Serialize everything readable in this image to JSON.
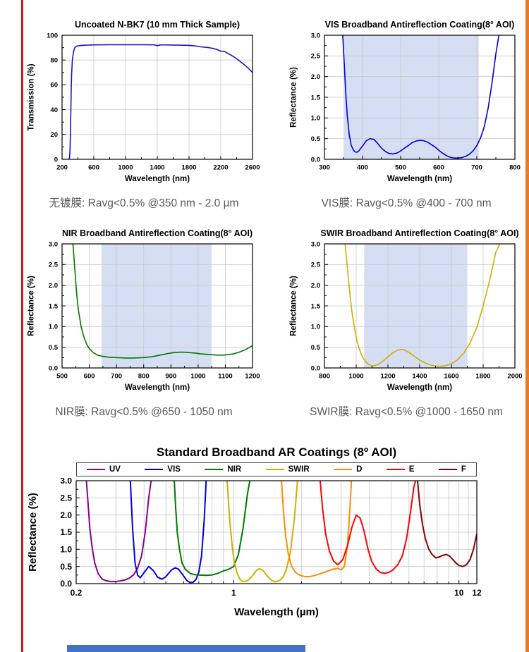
{
  "page": {
    "left_border_color": "#c01a20",
    "right_border_color": "#e87c24",
    "bottom_bar_color": "#4472c4"
  },
  "style": {
    "band_color": "#d5def2",
    "grid_color": "#c9c9c9",
    "caption_color": "#595959"
  },
  "chart_data": [
    {
      "id": "uncoated-bk7",
      "type": "line",
      "title": "Uncoated N-BK7 (10 mm Thick Sample)",
      "xlabel": "Wavelength (nm)",
      "ylabel": "Transmission (%)",
      "caption": "无镀膜: Ravg<0.5% @350 nm - 2.0 µm",
      "xscale": "linear",
      "xlim": [
        200,
        2600
      ],
      "ylim": [
        0,
        100
      ],
      "xticks": [
        200,
        600,
        1000,
        1400,
        1800,
        2200,
        2600
      ],
      "yticks": [
        0,
        20,
        40,
        60,
        80,
        100
      ],
      "ydecimals": 0,
      "series": [
        {
          "name": "N-BK7 transmission",
          "color": "#1414cc",
          "x": [
            288,
            295,
            300,
            305,
            310,
            315,
            320,
            330,
            340,
            350,
            360,
            380,
            400,
            450,
            500,
            600,
            700,
            800,
            900,
            1000,
            1100,
            1200,
            1300,
            1360,
            1400,
            1440,
            1500,
            1600,
            1700,
            1800,
            1850,
            1900,
            1950,
            2000,
            2050,
            2100,
            2150,
            2200,
            2250,
            2300,
            2350,
            2400,
            2450,
            2500,
            2550,
            2600
          ],
          "y": [
            0,
            2,
            8,
            20,
            38,
            55,
            68,
            80,
            85,
            88,
            90,
            91,
            91.5,
            91.8,
            92,
            92.2,
            92.3,
            92.4,
            92.4,
            92.4,
            92.4,
            92.4,
            92.3,
            92.3,
            91.6,
            92.2,
            92.2,
            92.1,
            92.0,
            91.8,
            91.6,
            91.2,
            90.6,
            90.4,
            90.0,
            89.4,
            88.6,
            87.2,
            86.8,
            85.0,
            83.2,
            81.0,
            78.6,
            76.0,
            73.2,
            70.0
          ]
        }
      ]
    },
    {
      "id": "vis-bbar",
      "type": "line",
      "title": "VIS Broadband Antireflection Coating(8° AOI)",
      "xlabel": "Wavelength (nm)",
      "ylabel": "Reflectance (%)",
      "caption": "VIS膜: Ravg<0.5% @400 - 700 nm",
      "xscale": "linear",
      "xlim": [
        300,
        800
      ],
      "ylim": [
        0,
        3.0
      ],
      "xticks": [
        300,
        400,
        500,
        600,
        700,
        800
      ],
      "yticks": [
        0,
        0.5,
        1.0,
        1.5,
        2.0,
        2.5,
        3.0
      ],
      "ydecimals": 1,
      "band": [
        350,
        705
      ],
      "series": [
        {
          "name": "VIS BBAR reflectance",
          "color": "#0000dd",
          "x": [
            348,
            352,
            356,
            360,
            365,
            370,
            375,
            380,
            385,
            390,
            400,
            410,
            420,
            430,
            440,
            450,
            460,
            470,
            480,
            490,
            500,
            510,
            520,
            530,
            540,
            550,
            560,
            570,
            580,
            590,
            600,
            610,
            620,
            630,
            640,
            650,
            660,
            670,
            680,
            690,
            700,
            710,
            720,
            730,
            740,
            750,
            758
          ],
          "y": [
            3.0,
            2.3,
            1.6,
            1.05,
            0.6,
            0.35,
            0.24,
            0.18,
            0.17,
            0.2,
            0.32,
            0.45,
            0.5,
            0.48,
            0.38,
            0.27,
            0.19,
            0.14,
            0.13,
            0.15,
            0.2,
            0.27,
            0.33,
            0.4,
            0.44,
            0.46,
            0.45,
            0.42,
            0.36,
            0.3,
            0.22,
            0.15,
            0.09,
            0.05,
            0.03,
            0.03,
            0.04,
            0.07,
            0.12,
            0.2,
            0.33,
            0.52,
            0.8,
            1.25,
            1.85,
            2.55,
            3.0
          ]
        }
      ]
    },
    {
      "id": "nir-bbar",
      "type": "line",
      "title": "NIR Broadband Antireflection Coating(8° AOI)",
      "xlabel": "Wavelength (nm)",
      "ylabel": "Reflectance (%)",
      "caption": "NIR膜: Ravg<0.5% @650 - 1050 nm",
      "xscale": "linear",
      "xlim": [
        500,
        1200
      ],
      "ylim": [
        0,
        3.0
      ],
      "xticks": [
        500,
        600,
        700,
        800,
        900,
        1000,
        1100,
        1200
      ],
      "yticks": [
        0,
        0.5,
        1.0,
        1.5,
        2.0,
        2.5,
        3.0
      ],
      "ydecimals": 1,
      "band": [
        645,
        1050
      ],
      "series": [
        {
          "name": "NIR BBAR reflectance",
          "color": "#007a00",
          "x": [
            540,
            545,
            550,
            555,
            560,
            570,
            580,
            590,
            600,
            615,
            630,
            650,
            670,
            700,
            730,
            760,
            800,
            830,
            860,
            890,
            910,
            930,
            950,
            970,
            990,
            1010,
            1030,
            1050,
            1070,
            1090,
            1110,
            1130,
            1150,
            1170,
            1190,
            1200
          ],
          "y": [
            3.0,
            2.55,
            2.1,
            1.7,
            1.4,
            1.0,
            0.75,
            0.58,
            0.47,
            0.37,
            0.31,
            0.28,
            0.26,
            0.25,
            0.24,
            0.24,
            0.25,
            0.27,
            0.31,
            0.35,
            0.37,
            0.38,
            0.38,
            0.37,
            0.36,
            0.34,
            0.33,
            0.32,
            0.31,
            0.31,
            0.32,
            0.34,
            0.38,
            0.43,
            0.5,
            0.54
          ]
        }
      ]
    },
    {
      "id": "swir-bbar",
      "type": "line",
      "title": "SWIR Broadband Antireflection Coating(8° AOI)",
      "xlabel": "Wavelength (nm)",
      "ylabel": "Reflectance (%)",
      "caption": "SWIR膜: Ravg<0.5% @1000 - 1650 nm",
      "xscale": "linear",
      "xlim": [
        800,
        2000
      ],
      "ylim": [
        0,
        3.0
      ],
      "xticks": [
        800,
        1000,
        1200,
        1400,
        1600,
        1800,
        2000
      ],
      "yticks": [
        0,
        0.5,
        1.0,
        1.5,
        2.0,
        2.5,
        3.0
      ],
      "ydecimals": 1,
      "band": [
        1050,
        1700
      ],
      "series": [
        {
          "name": "SWIR BBAR reflectance",
          "color": "#d2ae00",
          "x": [
            930,
            940,
            950,
            960,
            975,
            990,
            1005,
            1020,
            1040,
            1060,
            1080,
            1100,
            1120,
            1140,
            1170,
            1200,
            1230,
            1260,
            1280,
            1300,
            1330,
            1360,
            1400,
            1440,
            1480,
            1520,
            1560,
            1600,
            1640,
            1680,
            1720,
            1760,
            1800,
            1840,
            1880,
            1905
          ],
          "y": [
            3.0,
            2.6,
            2.2,
            1.8,
            1.3,
            0.95,
            0.65,
            0.45,
            0.26,
            0.15,
            0.08,
            0.05,
            0.06,
            0.09,
            0.17,
            0.27,
            0.36,
            0.43,
            0.45,
            0.44,
            0.38,
            0.3,
            0.19,
            0.11,
            0.06,
            0.04,
            0.05,
            0.1,
            0.2,
            0.37,
            0.62,
            0.98,
            1.5,
            2.1,
            2.8,
            3.0
          ]
        }
      ]
    },
    {
      "id": "standard-bbar",
      "type": "line",
      "title": "Standard Broadband AR Coatings (8º AOI)",
      "xlabel": "Wavelength (µm)",
      "ylabel": "Reflectance (%)",
      "xscale": "log",
      "xlim": [
        0.2,
        12
      ],
      "ylim": [
        0,
        3.0
      ],
      "xticks": [
        0.2,
        1,
        10,
        12
      ],
      "yticks": [
        0,
        0.5,
        1.0,
        1.5,
        2.0,
        2.5,
        3.0
      ],
      "ydecimals": 1,
      "legend_position": "top",
      "series": [
        {
          "name": "UV",
          "color": "#8b008b",
          "x": [
            0.222,
            0.226,
            0.23,
            0.236,
            0.242,
            0.25,
            0.26,
            0.27,
            0.285,
            0.3,
            0.315,
            0.33,
            0.345,
            0.36,
            0.375,
            0.39,
            0.405,
            0.42,
            0.43
          ],
          "y": [
            3.0,
            2.3,
            1.6,
            1.0,
            0.6,
            0.3,
            0.14,
            0.09,
            0.06,
            0.06,
            0.08,
            0.11,
            0.16,
            0.26,
            0.45,
            0.8,
            1.5,
            2.5,
            3.0
          ]
        },
        {
          "name": "VIS",
          "color": "#0000dd",
          "x": [
            0.348,
            0.356,
            0.365,
            0.375,
            0.385,
            0.4,
            0.42,
            0.44,
            0.46,
            0.48,
            0.5,
            0.53,
            0.55,
            0.57,
            0.6,
            0.62,
            0.64,
            0.66,
            0.68,
            0.7,
            0.72,
            0.74,
            0.755
          ],
          "y": [
            3.0,
            1.6,
            0.6,
            0.24,
            0.17,
            0.32,
            0.5,
            0.38,
            0.19,
            0.13,
            0.2,
            0.4,
            0.46,
            0.42,
            0.22,
            0.09,
            0.03,
            0.04,
            0.12,
            0.33,
            0.8,
            1.85,
            3.0
          ]
        },
        {
          "name": "NIR",
          "color": "#007a00",
          "x": [
            0.545,
            0.553,
            0.562,
            0.575,
            0.59,
            0.61,
            0.64,
            0.67,
            0.7,
            0.75,
            0.8,
            0.85,
            0.9,
            0.95,
            1.0,
            1.05,
            1.1,
            1.15,
            1.18
          ],
          "y": [
            3.0,
            2.2,
            1.5,
            1.0,
            0.6,
            0.42,
            0.3,
            0.26,
            0.25,
            0.24,
            0.25,
            0.3,
            0.37,
            0.42,
            0.5,
            0.85,
            1.6,
            2.6,
            3.0
          ]
        },
        {
          "name": "SWIR",
          "color": "#d2ae00",
          "x": [
            0.935,
            0.95,
            0.965,
            0.985,
            1.005,
            1.03,
            1.06,
            1.09,
            1.12,
            1.16,
            1.21,
            1.26,
            1.3,
            1.35,
            1.41,
            1.47,
            1.53,
            1.6,
            1.66,
            1.72,
            1.79,
            1.86,
            1.92
          ],
          "y": [
            3.0,
            2.3,
            1.7,
            1.1,
            0.65,
            0.35,
            0.15,
            0.07,
            0.06,
            0.1,
            0.22,
            0.38,
            0.44,
            0.38,
            0.22,
            0.1,
            0.05,
            0.09,
            0.2,
            0.45,
            0.95,
            1.9,
            3.0
          ]
        },
        {
          "name": "D",
          "color": "#ff8c00",
          "x": [
            1.63,
            1.66,
            1.7,
            1.75,
            1.81,
            1.88,
            1.96,
            2.05,
            2.15,
            2.3,
            2.45,
            2.6,
            2.75,
            2.9,
            3.0,
            3.1,
            3.2,
            3.28,
            3.33
          ],
          "y": [
            3.0,
            2.2,
            1.4,
            0.85,
            0.5,
            0.33,
            0.25,
            0.21,
            0.2,
            0.24,
            0.3,
            0.36,
            0.42,
            0.45,
            0.4,
            0.5,
            1.1,
            2.2,
            3.0
          ]
        },
        {
          "name": "E",
          "color": "#ff0000",
          "x": [
            2.42,
            2.48,
            2.56,
            2.66,
            2.78,
            2.9,
            3.05,
            3.2,
            3.35,
            3.5,
            3.65,
            3.8,
            3.95,
            4.1,
            4.3,
            4.5,
            4.7,
            4.9,
            5.1,
            5.35,
            5.6,
            5.85,
            6.1,
            6.3,
            6.42
          ],
          "y": [
            3.0,
            2.2,
            1.45,
            0.95,
            0.65,
            0.55,
            0.7,
            1.1,
            1.65,
            2.0,
            1.9,
            1.5,
            1.0,
            0.65,
            0.42,
            0.32,
            0.3,
            0.33,
            0.4,
            0.55,
            0.8,
            1.3,
            2.1,
            2.8,
            3.0
          ]
        },
        {
          "name": "F",
          "color": "#8b0000",
          "x": [
            6.55,
            6.7,
            6.9,
            7.1,
            7.35,
            7.6,
            7.9,
            8.2,
            8.5,
            8.8,
            9.1,
            9.4,
            9.7,
            10.0,
            10.4,
            10.8,
            11.2,
            11.6,
            12.0
          ],
          "y": [
            3.0,
            2.3,
            1.7,
            1.3,
            1.0,
            0.85,
            0.75,
            0.78,
            0.83,
            0.85,
            0.8,
            0.7,
            0.6,
            0.53,
            0.5,
            0.55,
            0.7,
            1.0,
            1.45
          ]
        }
      ]
    }
  ]
}
